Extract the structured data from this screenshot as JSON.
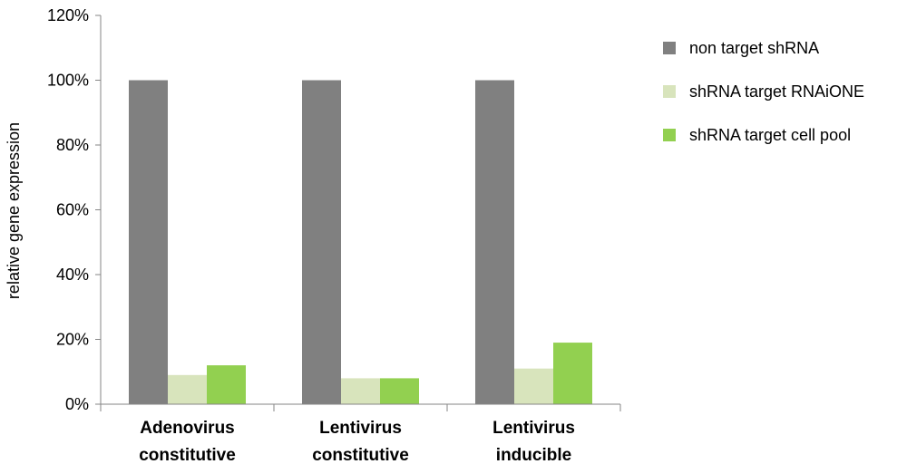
{
  "chart_data": {
    "type": "bar",
    "ylabel": "relative gene expression",
    "y_unit": "%",
    "ylim": [
      0,
      120
    ],
    "y_ticks": [
      0,
      20,
      40,
      60,
      80,
      100,
      120
    ],
    "y_tick_labels": [
      "0%",
      "20%",
      "40%",
      "60%",
      "80%",
      "100%",
      "120%"
    ],
    "grid": false,
    "legend_position": "right-top",
    "categories": [
      [
        "Adenovirus",
        "constitutive"
      ],
      [
        "Lentivirus",
        "constitutive"
      ],
      [
        "Lentivirus",
        "inducible"
      ]
    ],
    "series": [
      {
        "name": "non target shRNA",
        "color": "#808080",
        "values": [
          100,
          100,
          100
        ]
      },
      {
        "name": "shRNA target RNAiONE",
        "color": "#d8e4bc",
        "values": [
          9,
          8,
          11
        ]
      },
      {
        "name": "shRNA target cell pool",
        "color": "#92d050",
        "values": [
          12,
          8,
          19
        ]
      }
    ]
  }
}
